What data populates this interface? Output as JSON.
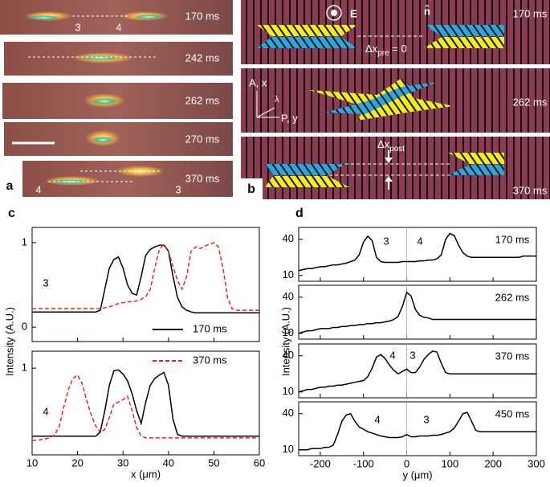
{
  "panel_a": {
    "label": "a",
    "frames": [
      "170 ms",
      "242 ms",
      "262 ms",
      "270 ms",
      "370 ms"
    ],
    "markers": [
      "3",
      "4",
      "4",
      "3"
    ]
  },
  "panel_b": {
    "label": "b",
    "frames": [
      "170 ms",
      "262 ms",
      "370 ms"
    ],
    "field": "E",
    "normal": "n̂",
    "delta_pre": {
      "symbol": "Δx",
      "sub": "pre",
      "rest": " = 0"
    },
    "axes": [
      "A, x",
      "λ",
      "P, y"
    ],
    "delta_post": {
      "symbol": "Δx",
      "sub": "post"
    }
  },
  "chart_data": [
    {
      "type": "line",
      "label": "c",
      "xlabel": "x (μm)",
      "ylabel": "Intensity (A.U.)",
      "xlim": [
        10,
        60
      ],
      "xticks": [
        10,
        20,
        30,
        40,
        50,
        60
      ],
      "x": [
        10,
        11,
        12,
        13,
        14,
        15,
        16,
        17,
        18,
        19,
        20,
        21,
        22,
        23,
        24,
        25,
        26,
        27,
        28,
        29,
        30,
        31,
        32,
        33,
        34,
        35,
        36,
        37,
        38,
        39,
        40,
        41,
        42,
        43,
        44,
        45,
        46,
        47,
        48,
        49,
        50,
        51,
        52,
        53,
        54,
        55,
        56,
        57,
        58,
        59,
        60
      ],
      "panels": [
        {
          "annotations": [
            "3"
          ],
          "ylim": [
            -0.17,
            1.18
          ],
          "yticks": [
            0,
            1
          ],
          "series": [
            {
              "name": "170 ms",
              "color": "#000000",
              "line_style": "solid",
              "values": [
                0.18,
                0.18,
                0.18,
                0.18,
                0.18,
                0.18,
                0.18,
                0.18,
                0.18,
                0.18,
                0.18,
                0.18,
                0.18,
                0.18,
                0.18,
                0.2,
                0.45,
                0.7,
                0.8,
                0.83,
                0.7,
                0.5,
                0.4,
                0.38,
                0.6,
                0.85,
                0.92,
                0.95,
                0.97,
                0.97,
                0.9,
                0.6,
                0.35,
                0.24,
                0.2,
                0.18,
                0.17,
                0.17,
                0.17,
                0.17,
                0.17,
                0.17,
                0.17,
                0.17,
                0.17,
                0.17,
                0.17,
                0.17,
                0.17,
                0.17,
                0.17
              ]
            },
            {
              "name": "370 ms",
              "color": "#e8231b",
              "line_style": "dashed",
              "values": [
                0.22,
                0.22,
                0.22,
                0.22,
                0.22,
                0.22,
                0.22,
                0.22,
                0.22,
                0.22,
                0.22,
                0.22,
                0.22,
                0.22,
                0.22,
                0.22,
                0.23,
                0.24,
                0.26,
                0.28,
                0.29,
                0.3,
                0.3,
                0.31,
                0.33,
                0.36,
                0.45,
                0.7,
                0.92,
                0.98,
                0.9,
                0.72,
                0.55,
                0.45,
                0.6,
                0.9,
                0.95,
                0.93,
                0.96,
                0.98,
                1.0,
                0.95,
                0.7,
                0.35,
                0.22,
                0.2,
                0.2,
                0.2,
                0.2,
                0.2,
                0.2
              ]
            }
          ]
        },
        {
          "annotations": [
            "4"
          ],
          "ylim": [
            -0.02,
            1.2
          ],
          "yticks": [
            1
          ],
          "series": [
            {
              "color": "#000000",
              "line_style": "solid",
              "values": [
                0.2,
                0.2,
                0.2,
                0.2,
                0.2,
                0.2,
                0.2,
                0.2,
                0.2,
                0.2,
                0.2,
                0.2,
                0.2,
                0.2,
                0.2,
                0.25,
                0.5,
                0.8,
                0.97,
                0.98,
                0.93,
                0.85,
                0.7,
                0.5,
                0.35,
                0.6,
                0.8,
                0.88,
                0.92,
                0.95,
                0.8,
                0.4,
                0.22,
                0.2,
                0.2,
                0.2,
                0.2,
                0.2,
                0.2,
                0.2,
                0.2,
                0.2,
                0.2,
                0.2,
                0.2,
                0.2,
                0.2,
                0.2,
                0.2,
                0.2,
                0.2
              ]
            },
            {
              "color": "#e8231b",
              "line_style": "dashed",
              "values": [
                0.15,
                0.15,
                0.16,
                0.17,
                0.18,
                0.22,
                0.32,
                0.55,
                0.75,
                0.88,
                0.92,
                0.82,
                0.62,
                0.45,
                0.32,
                0.24,
                0.28,
                0.42,
                0.58,
                0.6,
                0.63,
                0.67,
                0.5,
                0.3,
                0.2,
                0.18,
                0.18,
                0.18,
                0.18,
                0.18,
                0.18,
                0.18,
                0.18,
                0.18,
                0.18,
                0.18,
                0.18,
                0.18,
                0.18,
                0.18,
                0.18,
                0.18,
                0.18,
                0.18,
                0.18,
                0.18,
                0.18,
                0.18,
                0.18,
                0.18,
                0.18
              ]
            }
          ]
        }
      ]
    },
    {
      "type": "line",
      "label": "d",
      "xlabel": "y (μm)",
      "ylabel": "Intensity (A.U.)",
      "log_y": true,
      "xlim": [
        -250,
        300
      ],
      "xticks": [
        -200,
        -100,
        0,
        100,
        200,
        300
      ],
      "reference_x": 0,
      "x": [
        -250,
        -240,
        -230,
        -220,
        -210,
        -200,
        -190,
        -180,
        -170,
        -160,
        -150,
        -140,
        -130,
        -120,
        -110,
        -100,
        -90,
        -80,
        -70,
        -60,
        -50,
        -40,
        -30,
        -20,
        -10,
        0,
        10,
        20,
        30,
        40,
        50,
        60,
        70,
        80,
        90,
        100,
        110,
        120,
        130,
        140,
        150,
        160,
        170,
        180,
        190,
        200,
        210,
        220,
        230,
        240,
        250,
        260,
        270,
        280,
        290,
        300
      ],
      "panels": [
        {
          "time": "170 ms",
          "annotations": [
            "3",
            "4"
          ],
          "ylim": [
            8,
            63
          ],
          "yticks": [
            10,
            40
          ],
          "series": [
            {
              "color": "#000000",
              "line_style": "solid",
              "values": [
                12,
                12.5,
                13,
                13,
                13.5,
                14,
                14,
                14.5,
                15,
                15,
                15.5,
                16,
                17,
                18,
                22,
                36,
                45,
                38,
                20,
                17,
                16.5,
                16.5,
                16.5,
                16.5,
                17,
                17,
                17,
                17,
                17.5,
                17.5,
                18,
                18,
                19,
                22,
                40,
                50,
                46,
                32,
                24,
                21,
                20,
                20,
                20,
                20,
                20,
                20,
                20,
                20,
                20,
                20,
                20,
                20,
                21,
                21,
                21,
                21
              ]
            }
          ]
        },
        {
          "time": "262 ms",
          "annotations": [],
          "ylim": [
            8,
            63
          ],
          "yticks": [
            10,
            40
          ],
          "series": [
            {
              "color": "#000000",
              "line_style": "solid",
              "values": [
                10,
                10.5,
                11,
                11,
                11.5,
                12,
                12,
                12,
                12.5,
                12.5,
                13,
                13,
                13.5,
                13.5,
                14,
                14,
                14.5,
                14.5,
                15,
                15,
                15.5,
                16,
                17,
                19,
                28,
                48,
                42,
                25,
                20,
                18.5,
                18,
                17,
                17,
                17,
                17,
                17,
                17,
                17,
                17,
                17,
                17,
                17,
                17,
                17,
                17,
                17,
                17,
                17,
                17,
                17,
                17,
                17,
                17,
                17,
                17,
                17
              ]
            }
          ]
        },
        {
          "time": "370 ms",
          "annotations": [
            "4",
            "3"
          ],
          "ylim": [
            8,
            63
          ],
          "yticks": [
            10,
            40
          ],
          "series": [
            {
              "color": "#000000",
              "line_style": "solid",
              "values": [
                10,
                10.5,
                11,
                11,
                11.5,
                12,
                12,
                12.5,
                12.5,
                13,
                13,
                13.5,
                14,
                14.5,
                15,
                15.5,
                18,
                25,
                38,
                42,
                36,
                28,
                23,
                20,
                22,
                24,
                21,
                21,
                26,
                35,
                42,
                48,
                46,
                30,
                21,
                20,
                20,
                20,
                20,
                20,
                20,
                20,
                20,
                20,
                20,
                20,
                20,
                20,
                20,
                20,
                20,
                20,
                20,
                20,
                20,
                20
              ]
            }
          ]
        },
        {
          "time": "450 ms",
          "annotations": [
            "4",
            "3"
          ],
          "ylim": [
            8,
            63
          ],
          "yticks": [
            10,
            40
          ],
          "series": [
            {
              "color": "#000000",
              "line_style": "solid",
              "values": [
                10,
                10,
                10,
                10.5,
                10.5,
                10.5,
                11,
                11,
                12,
                18,
                30,
                38,
                40,
                30,
                24,
                22,
                20,
                19,
                18,
                17,
                16.5,
                16,
                16,
                16,
                16.5,
                18,
                16.5,
                16.5,
                17,
                17,
                17,
                17.5,
                17.5,
                18,
                19,
                20,
                23,
                30,
                40,
                42,
                30,
                21,
                20,
                20,
                20,
                20,
                20,
                20,
                20,
                20,
                20,
                20,
                20,
                20,
                20,
                20
              ]
            }
          ]
        }
      ]
    }
  ]
}
